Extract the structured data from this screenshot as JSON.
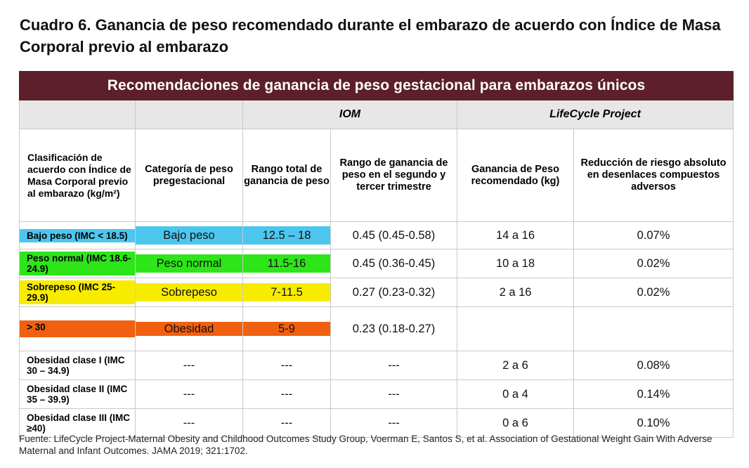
{
  "title": "Cuadro 6. Ganancia de peso recomendado durante el embarazo de acuerdo con Índice de Masa Corporal previo al embarazo",
  "table": {
    "banner": "Recomendaciones de ganancia de peso gestacional para embarazos únicos",
    "groups": {
      "iom": "IOM",
      "lifecycle": "LifeCycle Project"
    },
    "headers": {
      "clasificacion": "Clasificación de acuerdo con Índice de Masa Corporal previo al embarazo (kg/m²)",
      "categoria": "Categoría de peso pregestacional",
      "rango_total": "Rango total de ganancia de peso",
      "rango_trimestre": "Rango de ganancia de peso en el segundo y tercer trimestre",
      "ganancia": "Ganancia de Peso recomendado (kg)",
      "reduccion": "Reducción de riesgo absoluto en desenlaces compuestos adversos"
    },
    "rows": {
      "bajo": {
        "clasificacion": "Bajo peso (IMC < 18.5)",
        "categoria": "Bajo peso",
        "rango_total": "12.5 – 18",
        "rango_trimestre": "0.45 (0.45-0.58)",
        "ganancia": "14 a 16",
        "reduccion": "0.07%"
      },
      "normal": {
        "clasificacion": "Peso normal (IMC 18.6- 24.9)",
        "categoria": "Peso normal",
        "rango_total": "11.5-16",
        "rango_trimestre": "0.45 (0.36-0.45)",
        "ganancia": "10 a 18",
        "reduccion": "0.02%"
      },
      "sobrepeso": {
        "clasificacion": "Sobrepeso (IMC 25-29.9)",
        "categoria": "Sobrepeso",
        "rango_total": "7-11.5",
        "rango_trimestre": "0.27 (0.23-0.32)",
        "ganancia": "2 a 16",
        "reduccion": "0.02%"
      },
      "obesidad": {
        "clasificacion": "> 30",
        "categoria": "Obesidad",
        "rango_total": "5-9",
        "rango_trimestre": "0.23 (0.18-0.27)",
        "ganancia": "",
        "reduccion": ""
      },
      "clase1": {
        "clasificacion": "Obesidad clase I (IMC 30 – 34.9)",
        "categoria": "---",
        "rango_total": "---",
        "rango_trimestre": "---",
        "ganancia": "2 a 6",
        "reduccion": "0.08%"
      },
      "clase2": {
        "clasificacion": "Obesidad clase II (IMC 35 – 39.9)",
        "categoria": "---",
        "rango_total": "---",
        "rango_trimestre": "---",
        "ganancia": "0 a 4",
        "reduccion": "0.14%"
      },
      "clase3": {
        "clasificacion": "Obesidad clase III (IMC ≥40)",
        "categoria": "---",
        "rango_total": "---",
        "rango_trimestre": "---",
        "ganancia": "0 a 6",
        "reduccion": "0.10%"
      }
    }
  },
  "source": "Fuente: LifeCycle Project-Maternal Obesity and Childhood Outcomes Study Group, Voerman E, Santos S, et al. Association of Gestational Weight Gain With Adverse Maternal and Infant Outcomes. JAMA 2019; 321:1702.",
  "colors": {
    "banner": "#5c1f2b",
    "blue": "#4cc6ef",
    "green": "#2ee51a",
    "yellow": "#f7ec00",
    "orange": "#f06010"
  }
}
